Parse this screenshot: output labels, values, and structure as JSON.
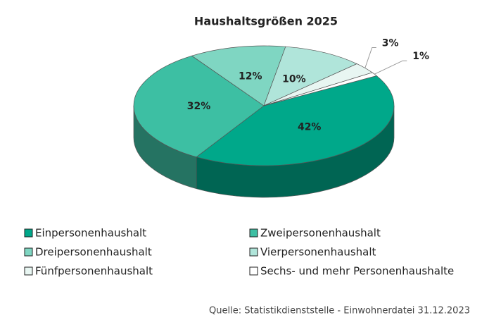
{
  "chart_data": {
    "type": "pie3d",
    "title": "Haushaltsgrößen 2025",
    "categories": [
      "Einpersonenhaushalt",
      "Zweipersonenhaushalt",
      "Dreipersonenhaushalt",
      "Vierpersonenhaushalt",
      "Fünfpersonenhaushalt",
      "Sechs- und mehr Personenhaushalte"
    ],
    "values": [
      42,
      32,
      12,
      10,
      3,
      1
    ],
    "value_labels": [
      "42%",
      "32%",
      "12%",
      "10%",
      "3%",
      "1%"
    ],
    "colors": [
      "#00a88a",
      "#3dbfa3",
      "#7fd6c2",
      "#b0e5da",
      "#e8f6f2",
      "#ffffff"
    ],
    "source": "Quelle: Statistikdienststelle - Einwohnerdatei 31.12.2023"
  }
}
